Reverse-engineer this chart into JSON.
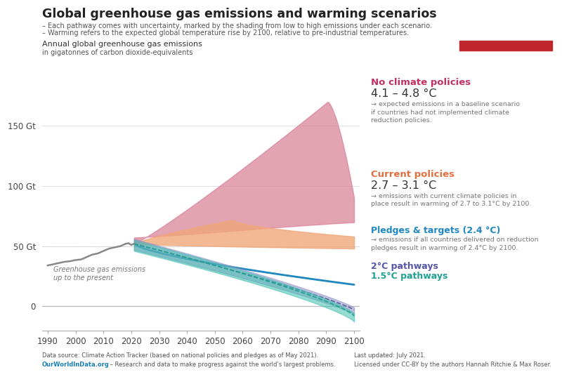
{
  "title": "Global greenhouse gas emissions and warming scenarios",
  "subtitle_line1": "– Each pathway comes with uncertainty, marked by the shading from low to high emissions under each scenario.",
  "subtitle_line2": "– Warming refers to the expected global temperature rise by 2100, relative to pre-industrial temperatures.",
  "ylabel_line1": "Annual global greenhouse gas emissions",
  "ylabel_line2": "in gigatonnes of carbon dioxide-equivalents",
  "ytick_vals": [
    0,
    50,
    100,
    150
  ],
  "ytick_labels": [
    "0",
    "50 Gt",
    "100 Gt",
    "150 Gt"
  ],
  "xticks": [
    1990,
    2000,
    2010,
    2020,
    2030,
    2040,
    2050,
    2060,
    2070,
    2080,
    2090,
    2100
  ],
  "xlim": [
    1988,
    2102
  ],
  "ylim": [
    -20,
    175
  ],
  "bg": "#ffffff",
  "hist_color": "#888888",
  "no_pol_fill": "#d9849a",
  "cur_pol_fill": "#f0a87a",
  "cur_pol_line": "#e07040",
  "pledges_line": "#1e87c0",
  "two_deg_fill": "#9090c8",
  "two_deg_line": "#6060a0",
  "one5_fill": "#40c0b0",
  "one5_line": "#20a090",
  "label_no_pol": "No climate policies",
  "temp_no_pol": "4.1 – 4.8 °C",
  "desc_no_pol": "→ expected emissions in a baseline scenario\nif countries had not implemented climate\nreduction policies.",
  "label_cur_pol": "Current policies",
  "temp_cur_pol": "2.7 – 3.1 °C",
  "desc_cur_pol": "→ emissions with current climate policies in\nplace result in warming of 2.7 to 3.1°C by 2100.",
  "label_pledges": "Pledges & targets (2.4 °C)",
  "desc_pledges": "→ emissions if all countries delivered on reduction\npledges result in warming of 2.4°C by 2100.",
  "label_2deg": "2°C pathways",
  "label_15deg": "1.5°C pathways",
  "datasource": "Data source: Climate Action Tracker (based on national policies and pledges as of May 2021).",
  "owid_url": "OurWorldInData.org",
  "owid_desc": " – Research and data to make progress against the world’s largest problems.",
  "last_updated": "Last updated: July 2021.",
  "license": "Licensed under CC-BY by the authors Hannah Ritchie & Max Roser."
}
